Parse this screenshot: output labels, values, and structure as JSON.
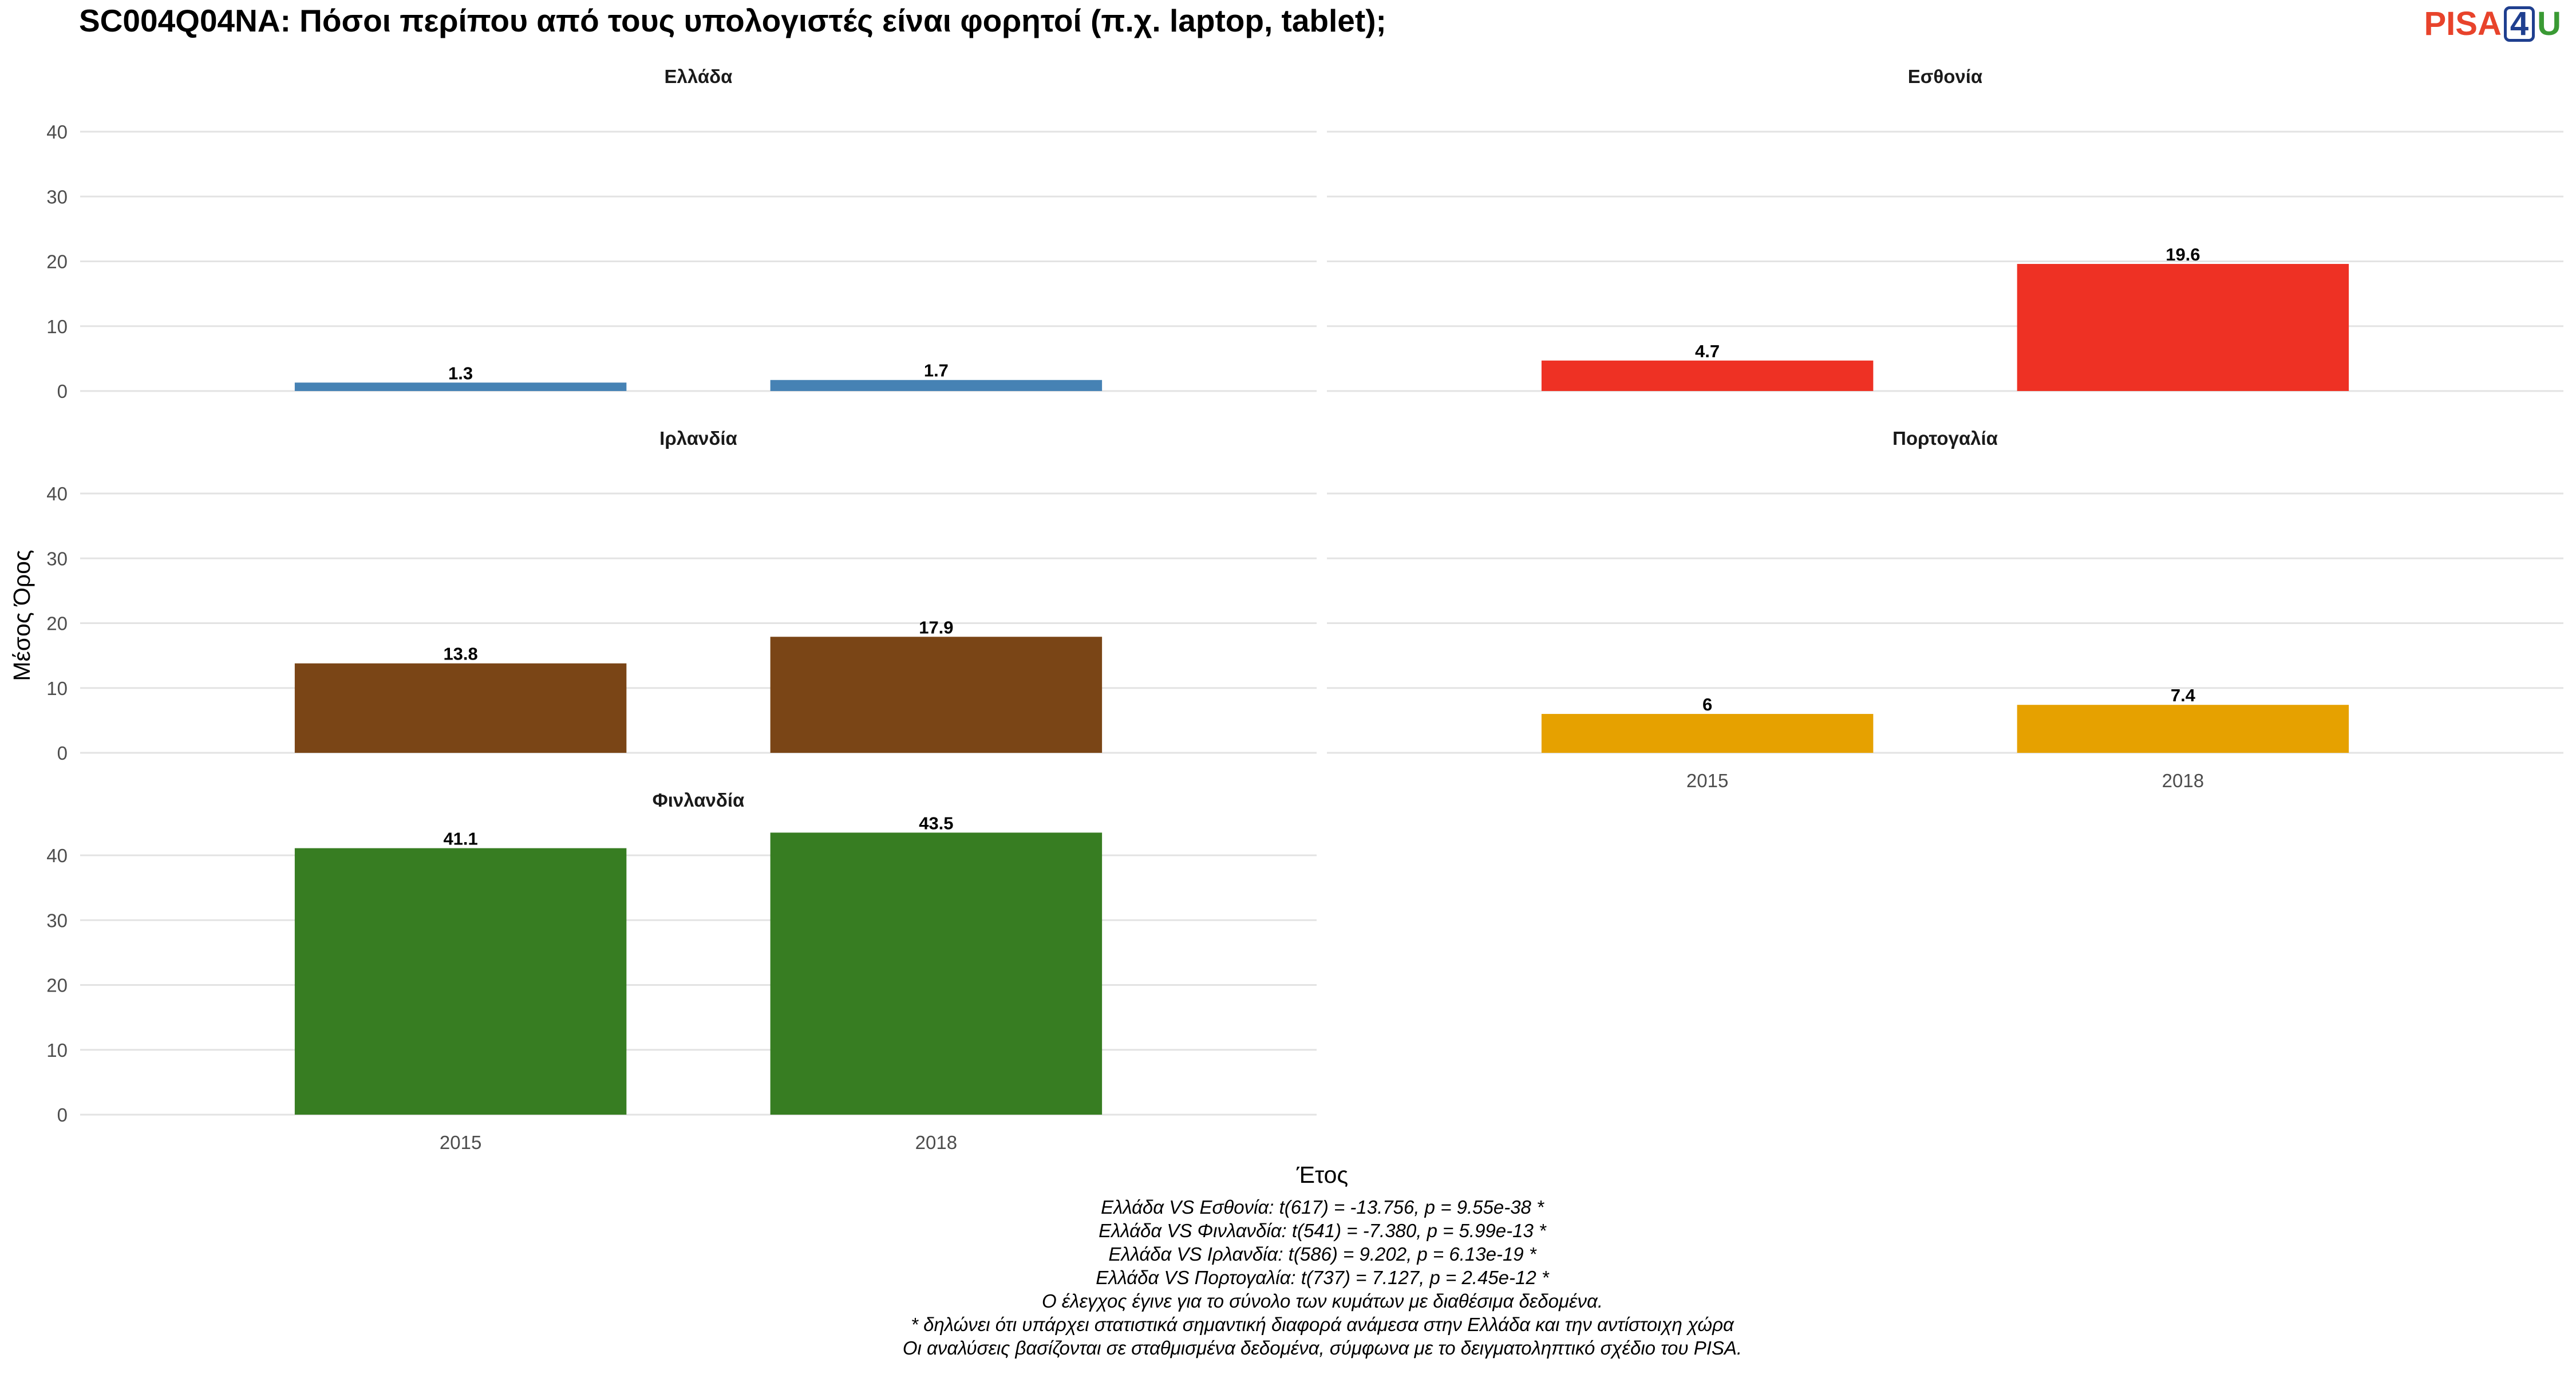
{
  "title": "SC004Q04NA: Πόσοι περίπου από τους υπολογιστές είναι φορητοί (π.χ. laptop, tablet);",
  "logo": {
    "part1": "PISA",
    "part2": "4",
    "part3": "U"
  },
  "chart_data": {
    "type": "bar",
    "xlabel": "Έτος",
    "ylabel": "Μέσος Όρος",
    "categories": [
      "2015",
      "2018"
    ],
    "ylim": [
      0,
      40
    ],
    "yticks": [
      "0",
      "10",
      "20",
      "30",
      "40"
    ],
    "grid": true,
    "legend": "none",
    "series": [
      {
        "name": "Ελλάδα",
        "values": [
          1.3,
          1.7
        ],
        "labels": [
          "1.3",
          "1.7"
        ],
        "color": "#4682b4"
      },
      {
        "name": "Εσθονία",
        "values": [
          4.7,
          19.6
        ],
        "labels": [
          "4.7",
          "19.6"
        ],
        "color": "#ee3124"
      },
      {
        "name": "Ιρλανδία",
        "values": [
          13.8,
          17.9
        ],
        "labels": [
          "13.8",
          "17.9"
        ],
        "color": "#7a4516"
      },
      {
        "name": "Πορτογαλία",
        "values": [
          6,
          7.4
        ],
        "labels": [
          "6",
          "7.4"
        ],
        "color": "#e6a100"
      },
      {
        "name": "Φινλανδία",
        "values": [
          41.1,
          43.5
        ],
        "labels": [
          "41.1",
          "43.5"
        ],
        "color": "#377d22"
      }
    ]
  },
  "footnotes": [
    "Ελλάδα VS Εσθονία: t(617) = -13.756, p = 9.55e-38 *",
    "Ελλάδα VS Φινλανδία: t(541) = -7.380, p = 5.99e-13 *",
    "Ελλάδα VS Ιρλανδία: t(586) = 9.202, p = 6.13e-19 *",
    "Ελλάδα VS Πορτογαλία: t(737) = 7.127, p = 2.45e-12 *",
    "Ο έλεγχος έγινε για το σύνολο των κυμάτων με διαθέσιμα δεδομένα.",
    "* δηλώνει ότι υπάρχει στατιστικά σημαντική διαφορά ανάμεσα στην Ελλάδα και την αντίστοιχη χώρα",
    "Οι αναλύσεις βασίζονται σε σταθμισμένα δεδομένα, σύμφωνα με το δειγματοληπτικό σχέδιο του PISA."
  ]
}
